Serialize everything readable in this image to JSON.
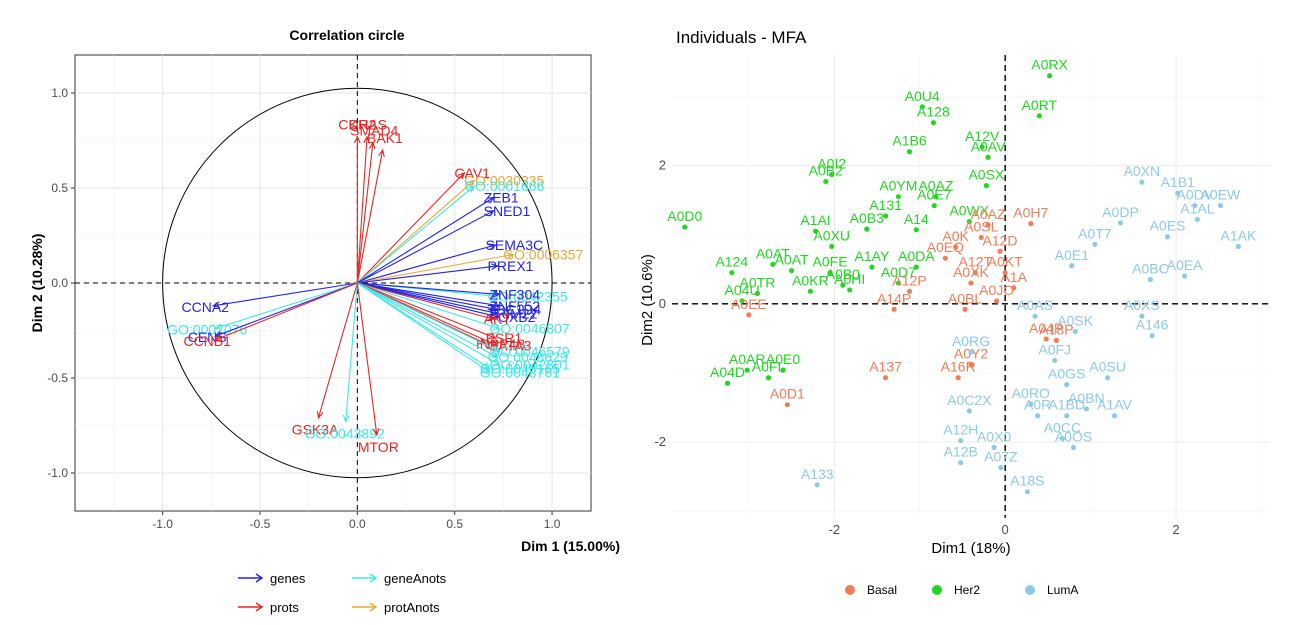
{
  "chart_data": [
    {
      "type": "correlation_circle",
      "title": "Correlation circle",
      "xlabel": "Dim 1 (15.00%)",
      "ylabel": "Dim 2 (10.28%)",
      "xlim": [
        -1.45,
        1.2
      ],
      "ylim": [
        -1.2,
        1.2
      ],
      "x_ticks": [
        -1.0,
        -0.5,
        0.0,
        0.5,
        1.0
      ],
      "y_ticks": [
        -1.0,
        -0.5,
        0.0,
        0.5,
        1.0
      ],
      "x_tick_labels": [
        "-1.0",
        "-0.5",
        "0.0",
        "0.5",
        "1.0"
      ],
      "y_tick_labels": [
        "-1.0",
        "-0.5",
        "0.0",
        "0.5",
        "1.0"
      ],
      "grid": true,
      "colors": {
        "genes": "#2323e0",
        "prots": "#e82525",
        "geneAnots": "#3ee8ea",
        "protAnots": "#e8a93a"
      },
      "legend": {
        "placement": "bottom",
        "entries": [
          {
            "key": "genes",
            "label": "genes"
          },
          {
            "key": "geneAnots",
            "label": "geneAnots"
          },
          {
            "key": "prots",
            "label": "prots"
          },
          {
            "key": "protAnots",
            "label": "protAnots"
          }
        ]
      },
      "arrows": [
        {
          "label": "CDH2",
          "group": "prots",
          "x": 0.0,
          "y": 0.77
        },
        {
          "label": "KRAS",
          "group": "prots",
          "x": 0.05,
          "y": 0.77
        },
        {
          "label": "SMAD4",
          "group": "prots",
          "x": 0.08,
          "y": 0.74
        },
        {
          "label": "BAK1",
          "group": "prots",
          "x": 0.13,
          "y": 0.7
        },
        {
          "label": "CAV1",
          "group": "prots",
          "x": 0.55,
          "y": 0.58
        },
        {
          "label": "GO:0030335",
          "group": "protAnots",
          "x": 0.6,
          "y": 0.54
        },
        {
          "label": "GO:0001666",
          "group": "geneAnots",
          "x": 0.6,
          "y": 0.51
        },
        {
          "label": "ZEB1",
          "group": "genes",
          "x": 0.7,
          "y": 0.45
        },
        {
          "label": "SNED1",
          "group": "genes",
          "x": 0.7,
          "y": 0.38
        },
        {
          "label": "SEMA3C",
          "group": "genes",
          "x": 0.71,
          "y": 0.2
        },
        {
          "label": "GO:0006357",
          "group": "protAnots",
          "x": 0.8,
          "y": 0.15
        },
        {
          "label": "PREX1",
          "group": "genes",
          "x": 0.72,
          "y": 0.09
        },
        {
          "label": "GO:0042355",
          "group": "geneAnots",
          "x": 0.72,
          "y": -0.07
        },
        {
          "label": "ZNF304",
          "group": "genes",
          "x": 0.73,
          "y": -0.06
        },
        {
          "label": "ZNF552",
          "group": "genes",
          "x": 0.73,
          "y": -0.12
        },
        {
          "label": "TBC1D4",
          "group": "genes",
          "x": 0.72,
          "y": -0.14
        },
        {
          "label": "TRIM22",
          "group": "genes",
          "x": 0.72,
          "y": -0.16
        },
        {
          "label": "FOXB2",
          "group": "genes",
          "x": 0.73,
          "y": -0.18
        },
        {
          "label": "AKT",
          "group": "prots",
          "x": 0.7,
          "y": -0.19
        },
        {
          "label": "GO:0046807",
          "group": "geneAnots",
          "x": 0.73,
          "y": -0.24
        },
        {
          "label": "ESR1",
          "group": "prots",
          "x": 0.71,
          "y": -0.29
        },
        {
          "label": "INPP4B",
          "group": "prots",
          "x": 0.66,
          "y": -0.32
        },
        {
          "label": "GATA3",
          "group": "prots",
          "x": 0.72,
          "y": -0.33
        },
        {
          "label": "GO:0046579",
          "group": "geneAnots",
          "x": 0.73,
          "y": -0.36
        },
        {
          "label": "GO:0048629",
          "group": "geneAnots",
          "x": 0.72,
          "y": -0.39
        },
        {
          "label": "GO:0042801",
          "group": "geneAnots",
          "x": 0.73,
          "y": -0.43
        },
        {
          "label": "GO:0045165",
          "group": "geneAnots",
          "x": 0.68,
          "y": -0.45
        },
        {
          "label": "GO:0048761",
          "group": "geneAnots",
          "x": 0.68,
          "y": -0.47
        },
        {
          "label": "CCNA2",
          "group": "genes",
          "x": -0.74,
          "y": -0.12
        },
        {
          "label": "GO:0007076",
          "group": "geneAnots",
          "x": -0.73,
          "y": -0.24
        },
        {
          "label": "CENS",
          "group": "genes",
          "x": -0.73,
          "y": -0.28
        },
        {
          "label": "CCNB1",
          "group": "prots",
          "x": -0.73,
          "y": -0.3
        },
        {
          "label": "GSK3A",
          "group": "prots",
          "x": -0.2,
          "y": -0.71
        },
        {
          "label": "GO:0043892",
          "group": "geneAnots",
          "x": -0.06,
          "y": -0.73
        },
        {
          "label": "MTOR",
          "group": "prots",
          "x": 0.1,
          "y": -0.8
        }
      ]
    },
    {
      "type": "scatter",
      "title": "Individuals - MFA",
      "xlabel": "Dim1 (18%)",
      "ylabel": "Dim2 (10.6%)",
      "xlim": [
        -3.9,
        3.1
      ],
      "ylim": [
        -3.1,
        3.6
      ],
      "x_ticks": [
        -2,
        0,
        2
      ],
      "y_ticks": [
        -2,
        0,
        2
      ],
      "x_tick_labels": [
        "-2",
        "0",
        "2"
      ],
      "y_tick_labels": [
        "-2",
        "0",
        "2"
      ],
      "grid": true,
      "colors": {
        "Basal": "#ef7d57",
        "Her2": "#23d623",
        "LumA": "#8dcae6"
      },
      "legend": {
        "placement": "bottom",
        "entries": [
          {
            "key": "Basal",
            "label": "Basal"
          },
          {
            "key": "Her2",
            "label": "Her2"
          },
          {
            "key": "LumA",
            "label": "LumA"
          }
        ]
      },
      "points": [
        {
          "label": "A0RX",
          "group": "Her2",
          "x": 0.52,
          "y": 3.3
        },
        {
          "label": "A0U4",
          "group": "Her2",
          "x": -0.97,
          "y": 2.85
        },
        {
          "label": "A128",
          "group": "Her2",
          "x": -0.84,
          "y": 2.62
        },
        {
          "label": "A0RT",
          "group": "Her2",
          "x": 0.4,
          "y": 2.72
        },
        {
          "label": "A1B6",
          "group": "Her2",
          "x": -1.12,
          "y": 2.2
        },
        {
          "label": "A12V",
          "group": "Her2",
          "x": -0.27,
          "y": 2.27
        },
        {
          "label": "A0AV",
          "group": "Her2",
          "x": -0.2,
          "y": 2.12
        },
        {
          "label": "A0SX",
          "group": "Her2",
          "x": -0.22,
          "y": 1.71
        },
        {
          "label": "A0I2",
          "group": "Her2",
          "x": -2.03,
          "y": 1.87
        },
        {
          "label": "A0B2",
          "group": "Her2",
          "x": -2.1,
          "y": 1.77
        },
        {
          "label": "A0D0",
          "group": "Her2",
          "x": -3.75,
          "y": 1.11
        },
        {
          "label": "A0YM",
          "group": "Her2",
          "x": -1.25,
          "y": 1.55
        },
        {
          "label": "A0AZ",
          "group": "Her2",
          "x": -0.81,
          "y": 1.55
        },
        {
          "label": "A0E7",
          "group": "Her2",
          "x": -0.83,
          "y": 1.42
        },
        {
          "label": "A131",
          "group": "Her2",
          "x": -1.4,
          "y": 1.27
        },
        {
          "label": "A0B3",
          "group": "Her2",
          "x": -1.62,
          "y": 1.08
        },
        {
          "label": "A14",
          "group": "Her2",
          "x": -1.04,
          "y": 1.07
        },
        {
          "label": "A0WX",
          "group": "Her2",
          "x": -0.42,
          "y": 1.19
        },
        {
          "label": "A1AI",
          "group": "Her2",
          "x": -2.22,
          "y": 1.05
        },
        {
          "label": "A0XU",
          "group": "Her2",
          "x": -2.03,
          "y": 0.83
        },
        {
          "label": "A0AT",
          "group": "Her2",
          "x": -2.72,
          "y": 0.57
        },
        {
          "label": "A124",
          "group": "Her2",
          "x": -3.2,
          "y": 0.45
        },
        {
          "label": "A0DA",
          "group": "Her2",
          "x": -1.04,
          "y": 0.53
        },
        {
          "label": "A1AY",
          "group": "Her2",
          "x": -1.56,
          "y": 0.53
        },
        {
          "label": "A0AT",
          "group": "Her2",
          "x": -2.5,
          "y": 0.48
        },
        {
          "label": "A0TR",
          "group": "Her2",
          "x": -2.9,
          "y": 0.15
        },
        {
          "label": "A04U",
          "group": "Her2",
          "x": -3.08,
          "y": 0.04
        },
        {
          "label": "A04D",
          "group": "Her2",
          "x": -3.25,
          "y": -1.15
        },
        {
          "label": "A0AR",
          "group": "Her2",
          "x": -3.02,
          "y": -0.96
        },
        {
          "label": "A0E0",
          "group": "Her2",
          "x": -2.6,
          "y": -0.96
        },
        {
          "label": "A0FL",
          "group": "Her2",
          "x": -2.77,
          "y": -1.07
        },
        {
          "label": "A0FE",
          "group": "Her2",
          "x": -2.05,
          "y": 0.45
        },
        {
          "label": "A0KR",
          "group": "Her2",
          "x": -2.28,
          "y": 0.18
        },
        {
          "label": "A0HI",
          "group": "Her2",
          "x": -1.82,
          "y": 0.2
        },
        {
          "label": "A0B0",
          "group": "Her2",
          "x": -1.9,
          "y": 0.27
        },
        {
          "label": "A0D7",
          "group": "Her2",
          "x": -1.25,
          "y": 0.3
        },
        {
          "label": "A0EE",
          "group": "Basal",
          "x": -3.0,
          "y": -0.16
        },
        {
          "label": "A0D1",
          "group": "Basal",
          "x": -2.55,
          "y": -1.46
        },
        {
          "label": "A137",
          "group": "Basal",
          "x": -1.4,
          "y": -1.07
        },
        {
          "label": "A14P",
          "group": "Basal",
          "x": -1.3,
          "y": -0.08
        },
        {
          "label": "A12P",
          "group": "Basal",
          "x": -1.12,
          "y": 0.18
        },
        {
          "label": "A16R",
          "group": "Basal",
          "x": -0.55,
          "y": -1.07
        },
        {
          "label": "A0EQ",
          "group": "Basal",
          "x": -0.7,
          "y": 0.66
        },
        {
          "label": "A0XK",
          "group": "Basal",
          "x": -0.4,
          "y": 0.3
        },
        {
          "label": "A0BL",
          "group": "Basal",
          "x": -0.47,
          "y": -0.08
        },
        {
          "label": "A0K",
          "group": "Basal",
          "x": -0.58,
          "y": 0.82
        },
        {
          "label": "A12T",
          "group": "Basal",
          "x": -0.35,
          "y": 0.45
        },
        {
          "label": "A12D",
          "group": "Basal",
          "x": -0.06,
          "y": 0.76
        },
        {
          "label": "A0AZ",
          "group": "Basal",
          "x": -0.2,
          "y": 1.14
        },
        {
          "label": "A0SL",
          "group": "Basal",
          "x": -0.28,
          "y": 0.96
        },
        {
          "label": "A0Y2",
          "group": "Basal",
          "x": -0.4,
          "y": -0.88
        },
        {
          "label": "A0JO",
          "group": "Basal",
          "x": -0.1,
          "y": 0.04
        },
        {
          "label": "A1A",
          "group": "Basal",
          "x": 0.1,
          "y": 0.23
        },
        {
          "label": "A0KT",
          "group": "Basal",
          "x": 0.0,
          "y": 0.45
        },
        {
          "label": "A04P",
          "group": "Basal",
          "x": 0.48,
          "y": -0.51
        },
        {
          "label": "A18P",
          "group": "Basal",
          "x": 0.6,
          "y": -0.53
        },
        {
          "label": "A0H7",
          "group": "Basal",
          "x": 0.3,
          "y": 1.16
        },
        {
          "label": "A0XN",
          "group": "LumA",
          "x": 1.6,
          "y": 1.76
        },
        {
          "label": "A1B1",
          "group": "LumA",
          "x": 2.02,
          "y": 1.6
        },
        {
          "label": "A0DV",
          "group": "LumA",
          "x": 2.22,
          "y": 1.42
        },
        {
          "label": "A0EW",
          "group": "LumA",
          "x": 2.52,
          "y": 1.42
        },
        {
          "label": "A1AL",
          "group": "LumA",
          "x": 2.25,
          "y": 1.22
        },
        {
          "label": "A0DP",
          "group": "LumA",
          "x": 1.35,
          "y": 1.17
        },
        {
          "label": "A0ES",
          "group": "LumA",
          "x": 1.9,
          "y": 0.97
        },
        {
          "label": "A0T7",
          "group": "LumA",
          "x": 1.05,
          "y": 0.86
        },
        {
          "label": "A1AK",
          "group": "LumA",
          "x": 2.73,
          "y": 0.83
        },
        {
          "label": "A0EA",
          "group": "LumA",
          "x": 2.1,
          "y": 0.4
        },
        {
          "label": "A0BC",
          "group": "LumA",
          "x": 1.7,
          "y": 0.35
        },
        {
          "label": "A0E1",
          "group": "LumA",
          "x": 0.78,
          "y": 0.55
        },
        {
          "label": "A0AS",
          "group": "LumA",
          "x": 0.35,
          "y": -0.18
        },
        {
          "label": "A0XS",
          "group": "LumA",
          "x": 1.6,
          "y": -0.18
        },
        {
          "label": "A0SK",
          "group": "LumA",
          "x": 0.82,
          "y": -0.4
        },
        {
          "label": "A146",
          "group": "LumA",
          "x": 1.72,
          "y": -0.46
        },
        {
          "label": "A0RG",
          "group": "LumA",
          "x": -0.4,
          "y": -0.7
        },
        {
          "label": "A0FJ",
          "group": "LumA",
          "x": 0.58,
          "y": -0.82
        },
        {
          "label": "A0SU",
          "group": "LumA",
          "x": 1.2,
          "y": -1.07
        },
        {
          "label": "A0GS",
          "group": "LumA",
          "x": 0.72,
          "y": -1.17
        },
        {
          "label": "A0RO",
          "group": "LumA",
          "x": 0.3,
          "y": -1.45
        },
        {
          "label": "A0BN",
          "group": "LumA",
          "x": 0.95,
          "y": -1.52
        },
        {
          "label": "A1AV",
          "group": "LumA",
          "x": 1.28,
          "y": -1.62
        },
        {
          "label": "A1BD",
          "group": "LumA",
          "x": 0.72,
          "y": -1.62
        },
        {
          "label": "A0R",
          "group": "LumA",
          "x": 0.38,
          "y": -1.62
        },
        {
          "label": "A0C2X",
          "group": "LumA",
          "x": -0.42,
          "y": -1.55
        },
        {
          "label": "A12H",
          "group": "LumA",
          "x": -0.52,
          "y": -1.98
        },
        {
          "label": "A0X0",
          "group": "LumA",
          "x": -0.13,
          "y": -2.08
        },
        {
          "label": "A0OS",
          "group": "LumA",
          "x": 0.8,
          "y": -2.08
        },
        {
          "label": "A0CC",
          "group": "LumA",
          "x": 0.67,
          "y": -1.95
        },
        {
          "label": "A12B",
          "group": "LumA",
          "x": -0.52,
          "y": -2.3
        },
        {
          "label": "A07Z",
          "group": "LumA",
          "x": -0.05,
          "y": -2.37
        },
        {
          "label": "A18S",
          "group": "LumA",
          "x": 0.26,
          "y": -2.72
        },
        {
          "label": "A133",
          "group": "LumA",
          "x": -2.2,
          "y": -2.62
        }
      ]
    }
  ]
}
